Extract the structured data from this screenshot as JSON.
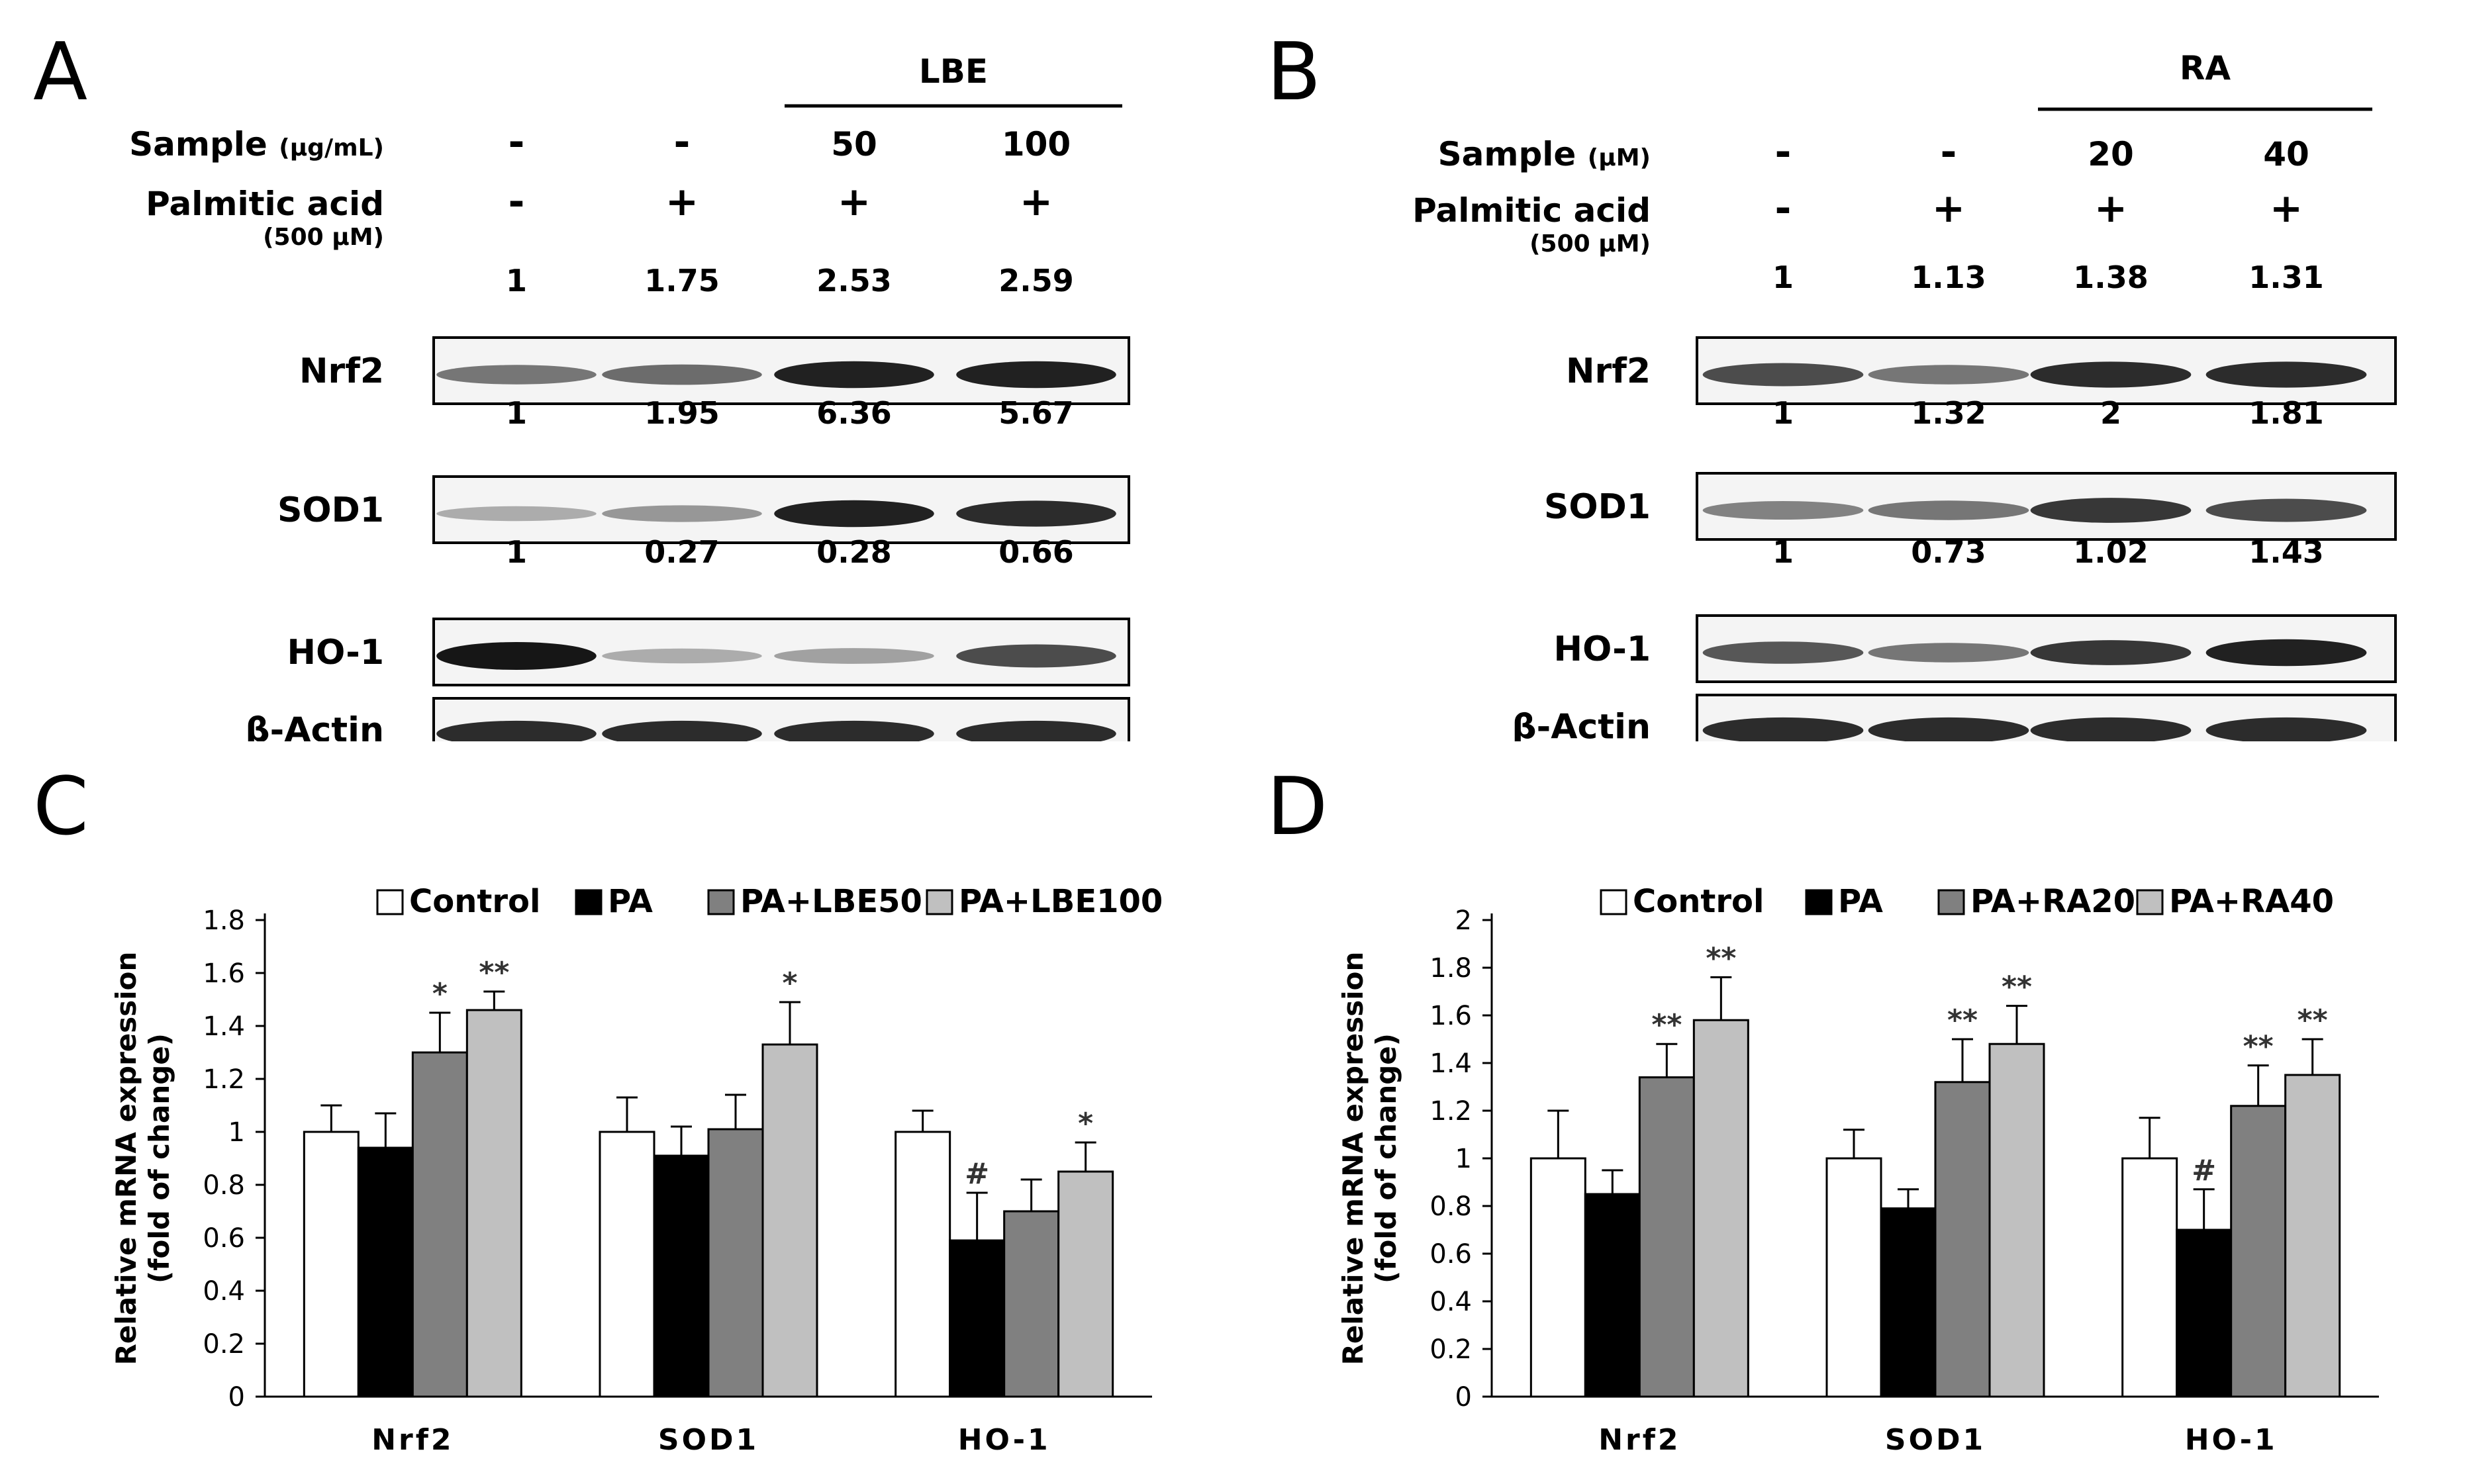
{
  "blots": [
    {
      "label": "A",
      "group_label": "LBE",
      "sample_label": "Sample",
      "sample_unit": "(μg/mL)",
      "pa_label": "Palmitic acid",
      "pa_unit": "(500 μM)",
      "sample_values": [
        "-",
        "-",
        "50",
        "100"
      ],
      "pa_values": [
        "-",
        "+",
        "+",
        "+"
      ],
      "proteins": [
        {
          "name": "Nrf2",
          "ratios": [
            "1",
            "1.75",
            "2.53",
            "2.59"
          ],
          "intensity": [
            0.55,
            0.6,
            0.95,
            0.95
          ]
        },
        {
          "name": "SOD1",
          "ratios": [
            "1",
            "1.95",
            "6.36",
            "5.67"
          ],
          "intensity": [
            0.3,
            0.4,
            0.95,
            0.9
          ]
        },
        {
          "name": "HO-1",
          "ratios": [
            "1",
            "0.27",
            "0.28",
            "0.66"
          ],
          "intensity": [
            1.0,
            0.3,
            0.35,
            0.75
          ]
        },
        {
          "name": "β-Actin",
          "ratios": [],
          "intensity": [
            0.9,
            0.9,
            0.9,
            0.9
          ]
        }
      ]
    },
    {
      "label": "B",
      "group_label": "RA",
      "sample_label": "Sample",
      "sample_unit": "(μM)",
      "pa_label": "Palmitic acid",
      "pa_unit": "(500 μM)",
      "sample_values": [
        "-",
        "-",
        "20",
        "40"
      ],
      "pa_values": [
        "-",
        "+",
        "+",
        "+"
      ],
      "proteins": [
        {
          "name": "Nrf2",
          "ratios": [
            "1",
            "1.13",
            "1.38",
            "1.31"
          ],
          "intensity": [
            0.75,
            0.55,
            0.9,
            0.9
          ]
        },
        {
          "name": "SOD1",
          "ratios": [
            "1",
            "1.32",
            "2",
            "1.81"
          ],
          "intensity": [
            0.5,
            0.55,
            0.85,
            0.75
          ]
        },
        {
          "name": "HO-1",
          "ratios": [
            "1",
            "0.73",
            "1.02",
            "1.43"
          ],
          "intensity": [
            0.7,
            0.55,
            0.85,
            0.95
          ]
        },
        {
          "name": "β-Actin",
          "ratios": [],
          "intensity": [
            0.9,
            0.9,
            0.9,
            0.9
          ]
        }
      ]
    }
  ],
  "chart_data": [
    {
      "label": "C",
      "type": "bar",
      "ylabel_line1": "Relative mRNA expression",
      "ylabel_line2": "(fold of change)",
      "categories": [
        "Nrf2",
        "SOD1",
        "HO-1"
      ],
      "ylim": [
        0,
        1.8
      ],
      "yticks": [
        "0",
        "0.2",
        "0.4",
        "0.6",
        "0.8",
        "1",
        "1.2",
        "1.4",
        "1.6",
        "1.8"
      ],
      "series": [
        {
          "name": "Control",
          "color": "#ffffff",
          "values": [
            1.0,
            1.0,
            1.0
          ],
          "errors": [
            0.1,
            0.13,
            0.08
          ],
          "sig": [
            "",
            "",
            ""
          ]
        },
        {
          "name": "PA",
          "color": "#000000",
          "values": [
            0.94,
            0.91,
            0.59
          ],
          "errors": [
            0.13,
            0.11,
            0.18
          ],
          "sig": [
            "",
            "",
            "#"
          ]
        },
        {
          "name": "PA+LBE50",
          "color": "#808080",
          "values": [
            1.3,
            1.01,
            0.7
          ],
          "errors": [
            0.15,
            0.13,
            0.12
          ],
          "sig": [
            "*",
            "",
            ""
          ]
        },
        {
          "name": "PA+LBE100",
          "color": "#c0c0c0",
          "values": [
            1.46,
            1.33,
            0.85
          ],
          "errors": [
            0.07,
            0.16,
            0.11
          ],
          "sig": [
            "**",
            "*",
            "*"
          ]
        }
      ]
    },
    {
      "label": "D",
      "type": "bar",
      "ylabel_line1": "Relative mRNA expression",
      "ylabel_line2": "(fold of change)",
      "categories": [
        "Nrf2",
        "SOD1",
        "HO-1"
      ],
      "ylim": [
        0,
        2
      ],
      "yticks": [
        "0",
        "0.2",
        "0.4",
        "0.6",
        "0.8",
        "1",
        "1.2",
        "1.4",
        "1.6",
        "1.8",
        "2"
      ],
      "series": [
        {
          "name": "Control",
          "color": "#ffffff",
          "values": [
            1.0,
            1.0,
            1.0
          ],
          "errors": [
            0.2,
            0.12,
            0.17
          ],
          "sig": [
            "",
            "",
            ""
          ]
        },
        {
          "name": "PA",
          "color": "#000000",
          "values": [
            0.85,
            0.79,
            0.7
          ],
          "errors": [
            0.1,
            0.08,
            0.17
          ],
          "sig": [
            "",
            "",
            "#"
          ]
        },
        {
          "name": "PA+RA20",
          "color": "#808080",
          "values": [
            1.34,
            1.32,
            1.22
          ],
          "errors": [
            0.14,
            0.18,
            0.17
          ],
          "sig": [
            "**",
            "**",
            "**"
          ]
        },
        {
          "name": "PA+RA40",
          "color": "#c0c0c0",
          "values": [
            1.58,
            1.48,
            1.35
          ],
          "errors": [
            0.18,
            0.16,
            0.15
          ],
          "sig": [
            "**",
            "**",
            "**"
          ]
        }
      ]
    }
  ]
}
